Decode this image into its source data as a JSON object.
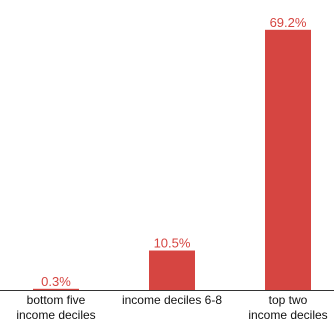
{
  "chart_data": {
    "type": "bar",
    "categories": [
      [
        "bottom five",
        "income deciles"
      ],
      [
        "income deciles 6-8"
      ],
      [
        "top two",
        "income deciles"
      ]
    ],
    "values": [
      0.3,
      10.5,
      69.2
    ],
    "value_labels": [
      "0.3%",
      "10.5%",
      "69.2%"
    ],
    "ylim": [
      0,
      75
    ],
    "grid": false,
    "legend": "none",
    "colors": {
      "bar": "#d64541",
      "label": "#d64541",
      "axis": "#333333",
      "category_text": "#111111"
    }
  }
}
